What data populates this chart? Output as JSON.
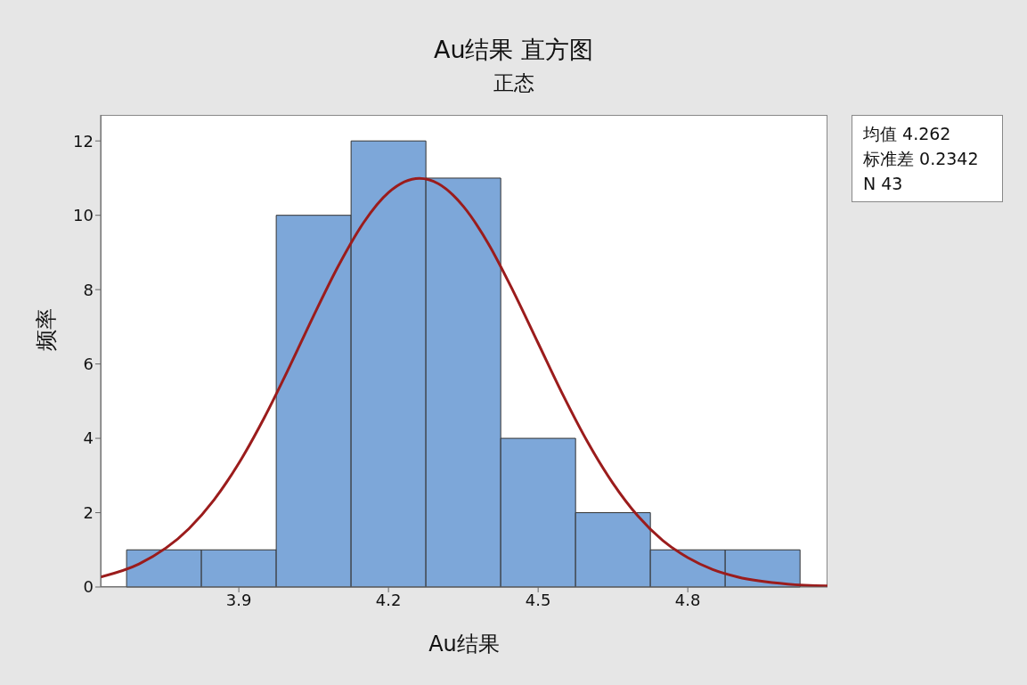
{
  "chart_data": {
    "type": "histogram",
    "title": "Au结果 直方图",
    "subtitle": "正态",
    "xlabel": "Au结果",
    "ylabel": "频率",
    "bins": [
      3.675,
      3.825,
      3.975,
      4.125,
      4.275,
      4.425,
      4.575,
      4.725,
      4.875,
      5.025
    ],
    "values": [
      1,
      1,
      10,
      12,
      11,
      4,
      2,
      1,
      1
    ],
    "color": "#7da7d9",
    "series": [
      {
        "type": "line",
        "color": "#9b1c1c",
        "x": [
          3.623,
          3.7,
          3.8,
          3.85,
          3.9,
          3.95,
          4.0,
          4.05,
          4.1,
          4.15,
          4.2,
          4.262,
          4.3,
          4.35,
          4.4,
          4.45,
          4.5,
          4.55,
          4.6,
          4.65,
          4.7,
          4.75,
          4.8,
          4.85,
          4.9,
          5.0,
          5.08
        ],
        "values": [
          0.27,
          0.62,
          1.57,
          2.34,
          3.33,
          4.53,
          5.88,
          7.3,
          8.65,
          9.8,
          10.61,
          10.99,
          10.85,
          10.24,
          9.24,
          7.96,
          6.56,
          5.16,
          3.88,
          2.79,
          1.91,
          1.25,
          0.79,
          0.47,
          0.27,
          0.08,
          0.03
        ]
      }
    ],
    "xlim": [
      3.623,
      5.08
    ],
    "xticks": [
      3.9,
      4.2,
      4.5,
      4.8
    ],
    "ylim": [
      0,
      12.7
    ],
    "yticks": [
      0,
      2,
      4,
      6,
      8,
      10,
      12
    ],
    "annotations": [
      "均值 4.262",
      "标准差 0.2342",
      "N 43"
    ],
    "grid": false,
    "marker": "none",
    "line_style": "solid"
  }
}
